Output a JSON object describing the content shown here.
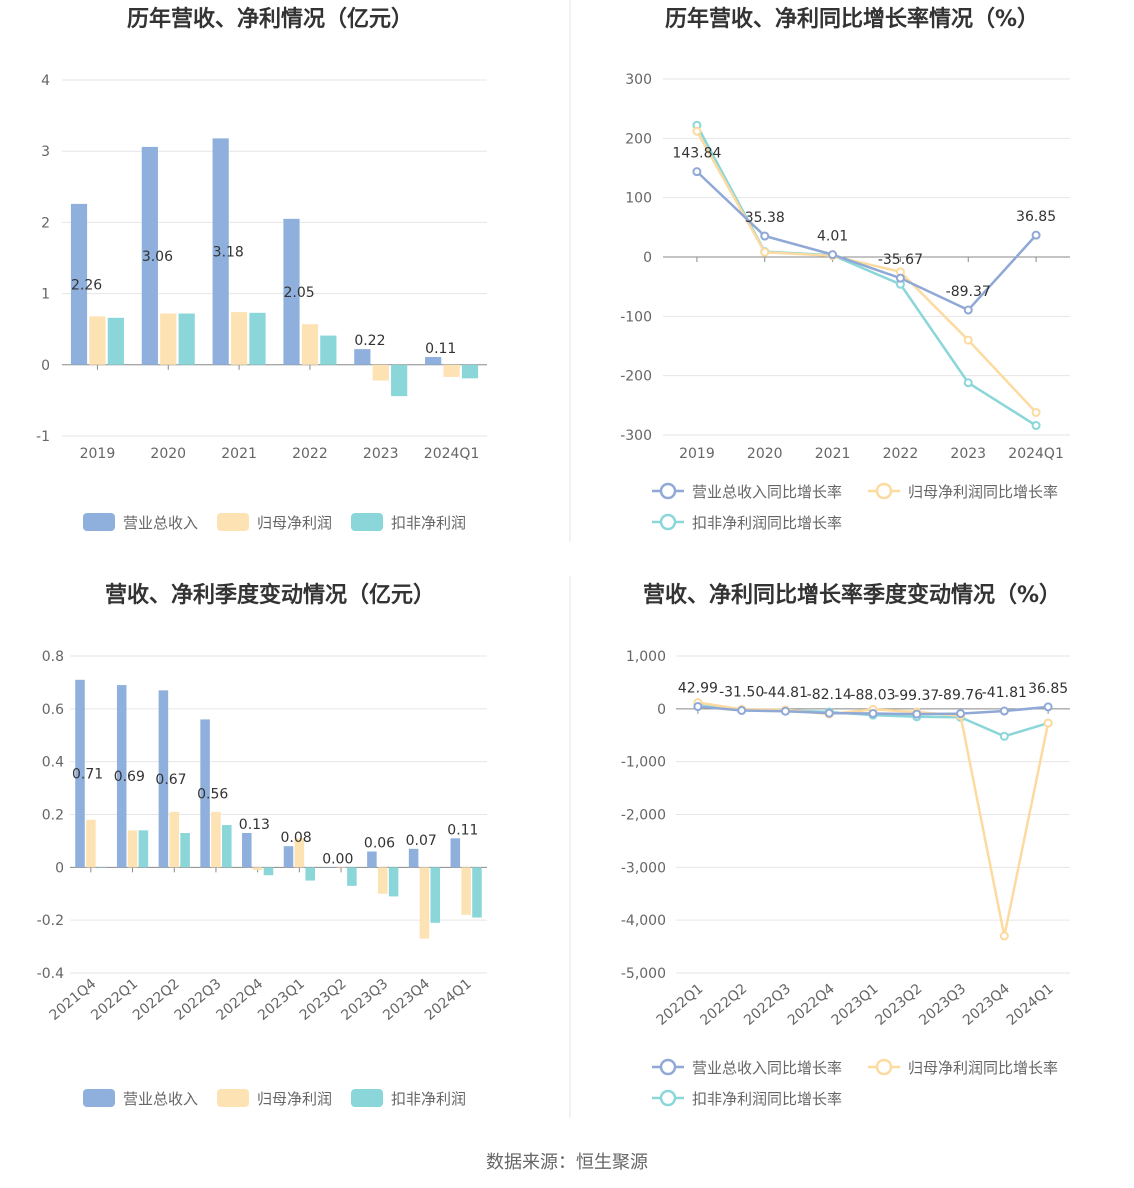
{
  "colors": {
    "revenue": "#8fb0dc",
    "netProfit": "#fde2b3",
    "deducted": "#8ad6d8",
    "revenueLine": "#8fa8d6",
    "netLine": "#fddaa0",
    "deductedLine": "#8ad6d8"
  },
  "source": "数据来源：恒生聚源",
  "chart_data": [
    {
      "type": "bar",
      "title": "历年营收、净利情况（亿元）",
      "categories": [
        "2019",
        "2020",
        "2021",
        "2022",
        "2023",
        "2024Q1"
      ],
      "yticks": [
        "4",
        "3",
        "2",
        "1",
        "0",
        "-1"
      ],
      "ylim": [
        -1,
        4
      ],
      "series": [
        {
          "name": "营业总收入",
          "values": [
            2.26,
            3.06,
            3.18,
            2.05,
            0.22,
            0.11
          ],
          "labels": [
            "2.26",
            "3.06",
            "3.18",
            "2.05",
            "0.22",
            "0.11"
          ]
        },
        {
          "name": "归母净利润",
          "values": [
            0.68,
            0.72,
            0.74,
            0.57,
            -0.22,
            -0.17
          ]
        },
        {
          "name": "扣非净利润",
          "values": [
            0.66,
            0.72,
            0.73,
            0.41,
            -0.44,
            -0.19
          ]
        }
      ],
      "legend": "bottom"
    },
    {
      "type": "line",
      "title": "历年营收、净利同比增长率情况（%）",
      "categories": [
        "2019",
        "2020",
        "2021",
        "2022",
        "2023",
        "2024Q1"
      ],
      "yticks": [
        "300",
        "200",
        "100",
        "0",
        "-100",
        "-200",
        "-300"
      ],
      "ylim": [
        -300,
        300
      ],
      "series": [
        {
          "name": "营业总收入同比增长率",
          "values": [
            143.84,
            35.38,
            4.01,
            -35.67,
            -89.37,
            36.85
          ],
          "labels": [
            "143.84",
            "35.38",
            "4.01",
            "-35.67",
            "-89.37",
            "36.85"
          ]
        },
        {
          "name": "归母净利润同比增长率",
          "values": [
            212,
            8,
            2,
            -25,
            -140,
            -262
          ]
        },
        {
          "name": "扣非净利润同比增长率",
          "values": [
            222,
            9,
            3,
            -46,
            -212,
            -284
          ]
        }
      ],
      "legend": "bottom"
    },
    {
      "type": "bar",
      "title": "营收、净利季度变动情况（亿元）",
      "categories": [
        "2021Q4",
        "2022Q1",
        "2022Q2",
        "2022Q3",
        "2022Q4",
        "2023Q1",
        "2023Q2",
        "2023Q3",
        "2023Q4",
        "2024Q1"
      ],
      "yticks": [
        "0.8",
        "0.6",
        "0.4",
        "0.2",
        "0",
        "-0.2",
        "-0.4"
      ],
      "ylim": [
        -0.4,
        0.8
      ],
      "series": [
        {
          "name": "营业总收入",
          "values": [
            0.71,
            0.69,
            0.67,
            0.56,
            0.13,
            0.08,
            0.0,
            0.06,
            0.07,
            0.11
          ],
          "labels": [
            "0.71",
            "0.69",
            "0.67",
            "0.56",
            "0.13",
            "0.08",
            "0.00",
            "0.06",
            "0.07",
            "0.11"
          ]
        },
        {
          "name": "归母净利润",
          "values": [
            0.18,
            0.14,
            0.21,
            0.21,
            -0.01,
            0.11,
            0.0,
            -0.1,
            -0.27,
            -0.18
          ]
        },
        {
          "name": "扣非净利润",
          "values": [
            0.0,
            0.14,
            0.13,
            0.16,
            -0.03,
            -0.05,
            -0.07,
            -0.11,
            -0.21,
            -0.19
          ]
        }
      ],
      "legend": "bottom"
    },
    {
      "type": "line",
      "title": "营收、净利同比增长率季度变动情况（%）",
      "categories": [
        "2022Q1",
        "2022Q2",
        "2022Q3",
        "2022Q4",
        "2023Q1",
        "2023Q2",
        "2023Q3",
        "2023Q4",
        "2024Q1"
      ],
      "yticks": [
        "1,000",
        "0",
        "-1,000",
        "-2,000",
        "-3,000",
        "-4,000",
        "-5,000"
      ],
      "ylim": [
        -5000,
        1000
      ],
      "series": [
        {
          "name": "营业总收入同比增长率",
          "values": [
            42.99,
            -31.5,
            -44.81,
            -82.14,
            -88.03,
            -99.37,
            -89.76,
            -41.81,
            36.85
          ],
          "labels": [
            "42.99",
            "-31.50",
            "-44.81",
            "-82.14",
            "-88.03",
            "-99.37",
            "-89.76",
            "-41.81",
            "36.85"
          ]
        },
        {
          "name": "归母净利润同比增长率",
          "values": [
            120,
            -10,
            -20,
            -100,
            -10,
            -60,
            -130,
            -4300,
            -270
          ]
        },
        {
          "name": "扣非净利润同比增长率",
          "values": [
            100,
            -20,
            -30,
            -60,
            -120,
            -150,
            -160,
            -520,
            -270
          ]
        }
      ],
      "legend": "bottom"
    }
  ]
}
